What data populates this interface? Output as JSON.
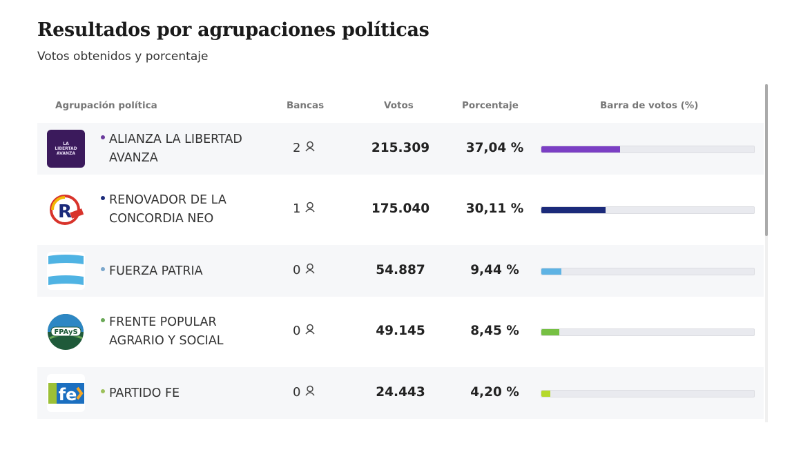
{
  "header": {
    "title": "Resultados por agrupaciones políticas",
    "subtitle": "Votos obtenidos y porcentaje"
  },
  "columns": {
    "party": "Agrupación política",
    "seats": "Bancas",
    "votes": "Votos",
    "percent": "Porcentaje",
    "bar": "Barra de votos (%)"
  },
  "rows": [
    {
      "name": "ALIANZA LA LIBERTAD AVANZA",
      "seats": "2",
      "votes": "215.309",
      "percent": "37,04 %",
      "percent_value": 37.04,
      "color": "#7b3fc4",
      "dot": "#6a3a9c",
      "logo": "lla-logo",
      "logo_text": "LA LIBERTAD AVANZA"
    },
    {
      "name": "RENOVADOR DE LA CONCORDIA NEO",
      "seats": "1",
      "votes": "175.040",
      "percent": "30,11 %",
      "percent_value": 30.11,
      "color": "#1b2a7a",
      "dot": "#1b2a7a",
      "logo": "renovador-logo",
      "logo_text": "R NEO"
    },
    {
      "name": "FUERZA PATRIA",
      "seats": "0",
      "votes": "54.887",
      "percent": "9,44 %",
      "percent_value": 9.44,
      "color": "#5eb3e4",
      "dot": "#7ba7cc",
      "logo": "fuerza-patria-flag-logo"
    },
    {
      "name": "FRENTE POPULAR AGRARIO Y SOCIAL",
      "seats": "0",
      "votes": "49.145",
      "percent": "8,45 %",
      "percent_value": 8.45,
      "color": "#76c043",
      "dot": "#6aa857",
      "logo": "fpays-logo",
      "logo_text": "FPAyS"
    },
    {
      "name": "PARTIDO FE",
      "seats": "0",
      "votes": "24.443",
      "percent": "4,20 %",
      "percent_value": 4.2,
      "color": "#b5d92b",
      "dot": "#9cc05a",
      "logo": "partido-fe-logo",
      "logo_text": "fe"
    }
  ]
}
